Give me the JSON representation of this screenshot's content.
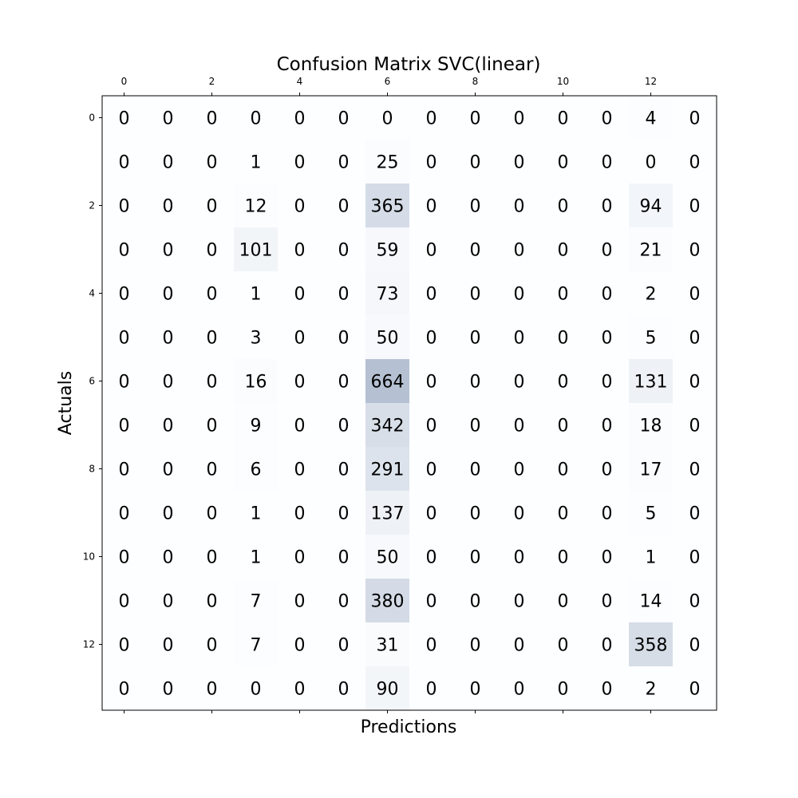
{
  "chart_data": {
    "type": "heatmap",
    "title": "Confusion Matrix SVC(linear)",
    "xlabel": "Predictions",
    "ylabel": "Actuals",
    "x_axis_position": "top",
    "x_tick_labels": [
      "0",
      "2",
      "4",
      "6",
      "8",
      "10",
      "12"
    ],
    "x_tick_indices": [
      0,
      2,
      4,
      6,
      8,
      10,
      12
    ],
    "y_tick_labels": [
      "0",
      "2",
      "4",
      "6",
      "8",
      "10",
      "12"
    ],
    "y_tick_indices": [
      0,
      2,
      4,
      6,
      8,
      10,
      12
    ],
    "bottom_tick_indices": [
      0,
      2,
      4,
      6,
      8,
      10,
      12
    ],
    "colormap": "Blues",
    "alpha": 0.3,
    "color_low": "#f7fbff",
    "color_high": "#08306b",
    "grid": false,
    "rows": 14,
    "cols": 14,
    "matrix": [
      [
        0,
        0,
        0,
        0,
        0,
        0,
        0,
        0,
        0,
        0,
        0,
        0,
        4,
        0
      ],
      [
        0,
        0,
        0,
        1,
        0,
        0,
        25,
        0,
        0,
        0,
        0,
        0,
        0,
        0
      ],
      [
        0,
        0,
        0,
        12,
        0,
        0,
        365,
        0,
        0,
        0,
        0,
        0,
        94,
        0
      ],
      [
        0,
        0,
        0,
        101,
        0,
        0,
        59,
        0,
        0,
        0,
        0,
        0,
        21,
        0
      ],
      [
        0,
        0,
        0,
        1,
        0,
        0,
        73,
        0,
        0,
        0,
        0,
        0,
        2,
        0
      ],
      [
        0,
        0,
        0,
        3,
        0,
        0,
        50,
        0,
        0,
        0,
        0,
        0,
        5,
        0
      ],
      [
        0,
        0,
        0,
        16,
        0,
        0,
        664,
        0,
        0,
        0,
        0,
        0,
        131,
        0
      ],
      [
        0,
        0,
        0,
        9,
        0,
        0,
        342,
        0,
        0,
        0,
        0,
        0,
        18,
        0
      ],
      [
        0,
        0,
        0,
        6,
        0,
        0,
        291,
        0,
        0,
        0,
        0,
        0,
        17,
        0
      ],
      [
        0,
        0,
        0,
        1,
        0,
        0,
        137,
        0,
        0,
        0,
        0,
        0,
        5,
        0
      ],
      [
        0,
        0,
        0,
        1,
        0,
        0,
        50,
        0,
        0,
        0,
        0,
        0,
        1,
        0
      ],
      [
        0,
        0,
        0,
        7,
        0,
        0,
        380,
        0,
        0,
        0,
        0,
        0,
        14,
        0
      ],
      [
        0,
        0,
        0,
        7,
        0,
        0,
        31,
        0,
        0,
        0,
        0,
        0,
        358,
        0
      ],
      [
        0,
        0,
        0,
        0,
        0,
        0,
        90,
        0,
        0,
        0,
        0,
        0,
        2,
        0
      ]
    ]
  }
}
